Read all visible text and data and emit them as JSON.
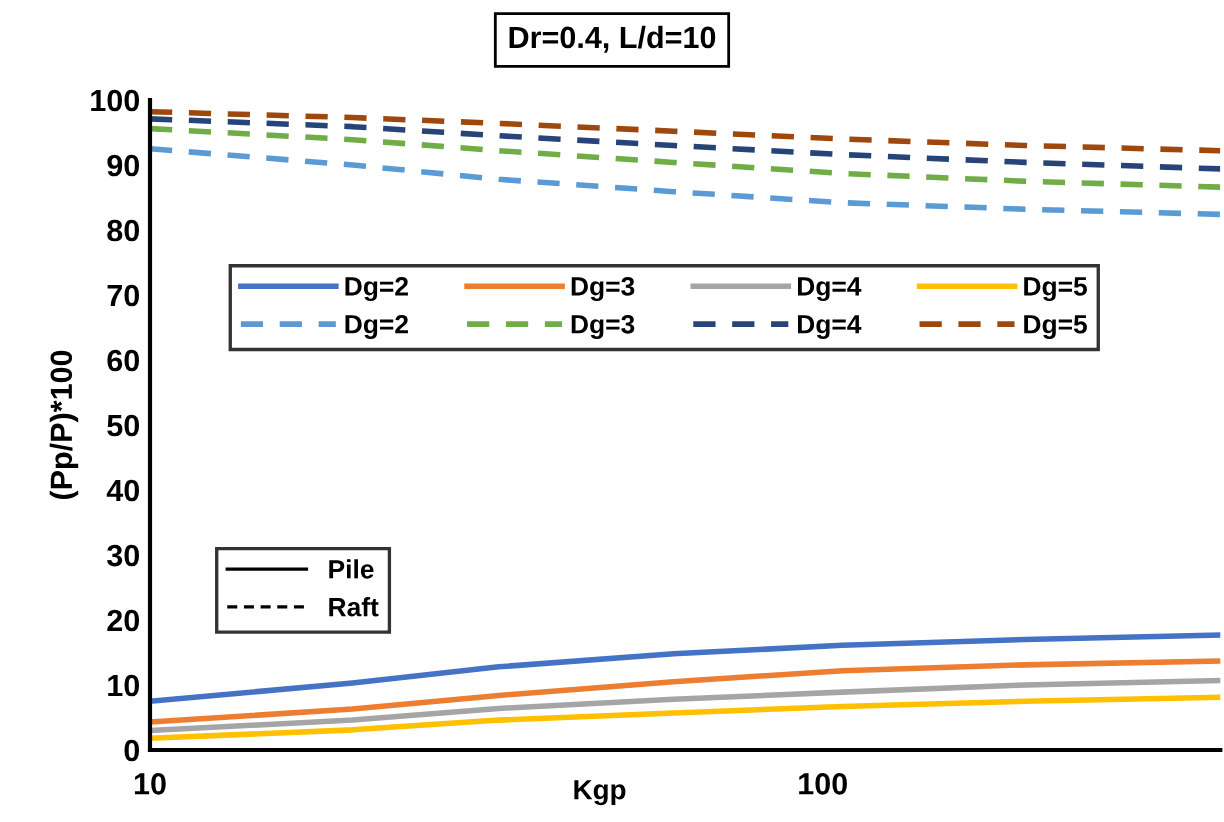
{
  "chart_data": {
    "type": "line",
    "title": "Dr=0.4, L/d=10",
    "xlabel": "Kgp",
    "ylabel": "(Pp/P)*100",
    "x": [
      10,
      20,
      33,
      60,
      107,
      200,
      390
    ],
    "series": [
      {
        "name": "Dg=2",
        "color": "#4472c4",
        "line_style": "solid",
        "values": [
          7.5,
          10.3,
          12.8,
          14.8,
          16.1,
          17.0,
          17.7
        ]
      },
      {
        "name": "Dg=3",
        "color": "#ed7d31",
        "line_style": "solid",
        "values": [
          4.3,
          6.3,
          8.4,
          10.5,
          12.2,
          13.1,
          13.7
        ]
      },
      {
        "name": "Dg=4",
        "color": "#a5a5a5",
        "line_style": "solid",
        "values": [
          3.0,
          4.6,
          6.4,
          7.8,
          8.9,
          10.0,
          10.7
        ]
      },
      {
        "name": "Dg=5",
        "color": "#ffc000",
        "line_style": "solid",
        "values": [
          1.8,
          3.1,
          4.6,
          5.7,
          6.7,
          7.5,
          8.1
        ]
      },
      {
        "name": "Dg=2",
        "color": "#5b9bd5",
        "line_style": "dashed",
        "values": [
          92.5,
          90.0,
          87.8,
          85.9,
          84.2,
          83.2,
          82.4
        ]
      },
      {
        "name": "Dg=3",
        "color": "#70ad47",
        "line_style": "dashed",
        "values": [
          95.6,
          93.9,
          92.2,
          90.4,
          88.7,
          87.5,
          86.6
        ]
      },
      {
        "name": "Dg=4",
        "color": "#264478",
        "line_style": "dashed",
        "values": [
          97.1,
          95.9,
          94.5,
          93.0,
          91.6,
          90.4,
          89.4
        ]
      },
      {
        "name": "Dg=5",
        "color": "#9e480e",
        "line_style": "dashed",
        "values": [
          98.2,
          97.3,
          96.4,
          95.2,
          94.0,
          93.0,
          92.2
        ]
      }
    ],
    "annotations": [
      "Pile",
      "Raft"
    ],
    "log": "x",
    "xlim": [
      10,
      390
    ],
    "xticks": [
      10,
      100
    ],
    "ylim": [
      0,
      100
    ],
    "yticks": [
      0,
      10,
      20,
      30,
      40,
      50,
      60,
      70,
      80,
      90,
      100
    ],
    "grid": false,
    "legend": "top",
    "marker": "none"
  }
}
